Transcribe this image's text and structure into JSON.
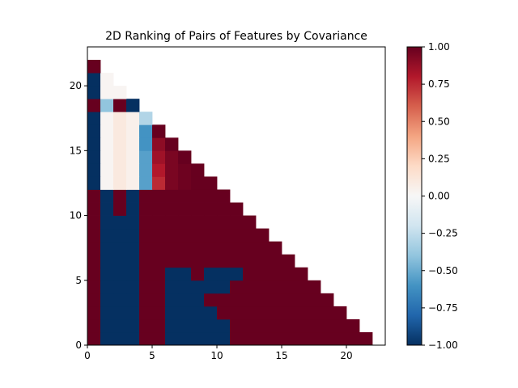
{
  "chart_data": {
    "type": "heatmap",
    "title": "2D Ranking of Pairs of Features by Covariance",
    "xlabel": "",
    "ylabel": "",
    "xlim": [
      0,
      23
    ],
    "ylim": [
      0,
      23
    ],
    "x_ticks": [
      0,
      5,
      10,
      15,
      20
    ],
    "y_ticks": [
      0,
      5,
      10,
      15,
      20
    ],
    "colorbar": {
      "range": [
        -1.0,
        1.0
      ],
      "ticks": [
        "1.00",
        "0.75",
        "0.50",
        "0.25",
        "0.00",
        "−0.25",
        "−0.50",
        "−0.75",
        "−1.00"
      ],
      "colormap": "RdBu_r",
      "stops": [
        "#053061",
        "#2166ac",
        "#4393c3",
        "#92c5de",
        "#d1e5f0",
        "#f7f7f7",
        "#fddbc7",
        "#f4a582",
        "#d6604d",
        "#b2182b",
        "#67001f"
      ]
    },
    "rows_from_bottom": [
      [
        1,
        -1,
        -1,
        -1,
        1,
        1,
        -1,
        -1,
        -1,
        -1,
        -1,
        1,
        1,
        1,
        1,
        1,
        1,
        1,
        1,
        1,
        1,
        1
      ],
      [
        1,
        -1,
        -1,
        -1,
        1,
        1,
        -1,
        -1,
        -1,
        -1,
        -1,
        1,
        1,
        1,
        1,
        1,
        1,
        1,
        1,
        1,
        1
      ],
      [
        1,
        -1,
        -1,
        -1,
        1,
        1,
        -1,
        -1,
        -1,
        -1,
        1,
        1,
        1,
        1,
        1,
        1,
        1,
        1,
        1,
        1
      ],
      [
        1,
        -1,
        -1,
        -1,
        1,
        1,
        -1,
        -1,
        -1,
        1,
        1,
        1,
        1,
        1,
        1,
        1,
        1,
        1,
        1
      ],
      [
        1,
        -1,
        -1,
        -1,
        1,
        1,
        -1,
        -1,
        -1,
        -1,
        -1,
        1,
        1,
        1,
        1,
        1,
        1,
        1
      ],
      [
        1,
        -1,
        -1,
        -1,
        1,
        1,
        -1,
        -1,
        1,
        -1,
        -1,
        -1,
        1,
        1,
        1,
        1,
        1
      ],
      [
        1,
        -1,
        -1,
        -1,
        1,
        1,
        1,
        1,
        1,
        1,
        1,
        1,
        1,
        1,
        1,
        1
      ],
      [
        1,
        -1,
        -1,
        -1,
        1,
        1,
        1,
        1,
        1,
        1,
        1,
        1,
        1,
        1,
        1
      ],
      [
        1,
        -1,
        -1,
        -1,
        1,
        1,
        1,
        1,
        1,
        1,
        1,
        1,
        1,
        1
      ],
      [
        1,
        -1,
        -1,
        -1,
        1,
        1,
        1,
        1,
        1,
        1,
        1,
        1,
        1
      ],
      [
        1,
        -1,
        1,
        -1,
        1,
        1,
        1,
        1,
        1,
        1,
        1,
        1
      ],
      [
        1,
        -1,
        1,
        -1,
        1,
        1,
        1,
        1,
        1,
        1,
        1
      ],
      [
        -1,
        0.02,
        0.1,
        0.05,
        -0.55,
        0.75,
        0.95,
        0.98,
        1,
        1
      ],
      [
        -1,
        0.02,
        0.1,
        0.05,
        -0.55,
        0.8,
        0.95,
        0.98,
        1
      ],
      [
        -1,
        0.02,
        0.1,
        0.05,
        -0.55,
        0.85,
        0.95,
        1
      ],
      [
        -1,
        0.02,
        0.1,
        0.05,
        -0.6,
        0.9,
        1
      ],
      [
        -1,
        0.02,
        0.1,
        0.05,
        -0.6,
        1
      ],
      [
        -1,
        0.02,
        0.1,
        0.05,
        -0.3
      ],
      [
        1,
        -0.4,
        1,
        -1
      ],
      [
        -1,
        0.02,
        0.02
      ],
      [
        -1,
        0.02
      ],
      [
        1
      ]
    ]
  }
}
